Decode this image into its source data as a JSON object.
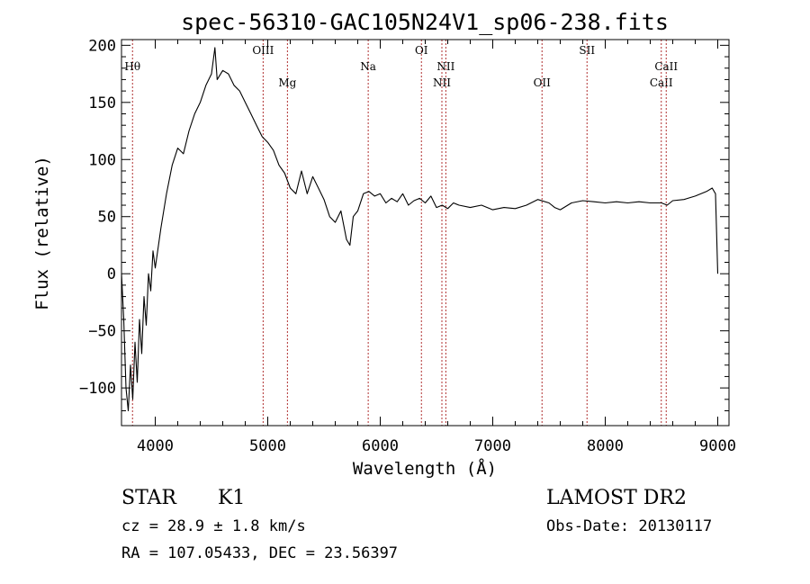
{
  "chart_data": {
    "type": "line",
    "title": "spec-56310-GAC105N24V1_sp06-238.fits",
    "xlabel": "Wavelength (Å)",
    "ylabel": "Flux (relative)",
    "xlim": [
      3700,
      9100
    ],
    "ylim": [
      -133,
      205
    ],
    "xticks": [
      4000,
      5000,
      6000,
      7000,
      8000,
      9000
    ],
    "xtick_labels": [
      "4000",
      "5000",
      "6000",
      "7000",
      "8000",
      "9000"
    ],
    "yticks": [
      -100,
      -50,
      0,
      50,
      100,
      150,
      200
    ],
    "ytick_labels": [
      "−100",
      "−50",
      "0",
      "50",
      "100",
      "150",
      "200"
    ],
    "grid": false,
    "series": [
      {
        "color": "#000000",
        "x": [
          3700,
          3720,
          3740,
          3760,
          3780,
          3800,
          3820,
          3840,
          3860,
          3880,
          3900,
          3920,
          3940,
          3960,
          3980,
          4000,
          4050,
          4100,
          4150,
          4200,
          4250,
          4300,
          4350,
          4400,
          4450,
          4500,
          4530,
          4550,
          4600,
          4650,
          4700,
          4750,
          4800,
          4850,
          4900,
          4950,
          5000,
          5050,
          5100,
          5150,
          5200,
          5250,
          5300,
          5350,
          5400,
          5450,
          5500,
          5550,
          5600,
          5650,
          5700,
          5730,
          5760,
          5800,
          5850,
          5900,
          5950,
          6000,
          6050,
          6100,
          6150,
          6200,
          6250,
          6300,
          6350,
          6400,
          6450,
          6500,
          6550,
          6600,
          6650,
          6700,
          6800,
          6900,
          7000,
          7100,
          7200,
          7300,
          7400,
          7500,
          7550,
          7600,
          7700,
          7800,
          7900,
          8000,
          8100,
          8200,
          8300,
          8400,
          8500,
          8550,
          8600,
          8700,
          8800,
          8900,
          8950,
          8980,
          9000
        ],
        "y": [
          0,
          -40,
          -100,
          -120,
          -80,
          -110,
          -60,
          -95,
          -40,
          -70,
          -20,
          -45,
          0,
          -15,
          20,
          5,
          40,
          70,
          95,
          110,
          105,
          125,
          140,
          150,
          165,
          175,
          198,
          170,
          178,
          175,
          165,
          160,
          150,
          140,
          130,
          120,
          115,
          108,
          95,
          88,
          75,
          70,
          90,
          70,
          85,
          75,
          65,
          50,
          45,
          55,
          30,
          25,
          50,
          55,
          70,
          72,
          68,
          70,
          62,
          66,
          63,
          70,
          60,
          64,
          66,
          62,
          68,
          58,
          60,
          57,
          62,
          60,
          58,
          60,
          56,
          58,
          57,
          60,
          65,
          62,
          58,
          56,
          62,
          64,
          63,
          62,
          63,
          62,
          63,
          62,
          62,
          60,
          64,
          65,
          68,
          72,
          75,
          70,
          0
        ]
      }
    ],
    "lines": [
      {
        "label": "Hθ",
        "x": 3798,
        "row": 1
      },
      {
        "label": "OIII",
        "x": 4959,
        "row": 0
      },
      {
        "label": "Mg",
        "x": 5175,
        "row": 2
      },
      {
        "label": "Na",
        "x": 5893,
        "row": 1
      },
      {
        "label": "OI",
        "x": 6366,
        "row": 0
      },
      {
        "label": "NII",
        "x": 6548,
        "row": 2
      },
      {
        "label": "NII",
        "x": 6583,
        "row": 1
      },
      {
        "label": "OII",
        "x": 7438,
        "row": 2
      },
      {
        "label": "SII",
        "x": 7838,
        "row": 0
      },
      {
        "label": "CaII",
        "x": 8498,
        "row": 2
      },
      {
        "label": "CaII",
        "x": 8542,
        "row": 1
      }
    ],
    "line_color": "#b03030"
  },
  "info": {
    "object_class": "STAR",
    "subclass": "K1",
    "survey": "LAMOST DR2",
    "redshift": "cz = 28.9 ± 1.8 km/s",
    "obs_date": "Obs-Date: 20130117",
    "coords": "RA = 107.05433, DEC =  23.56397"
  }
}
